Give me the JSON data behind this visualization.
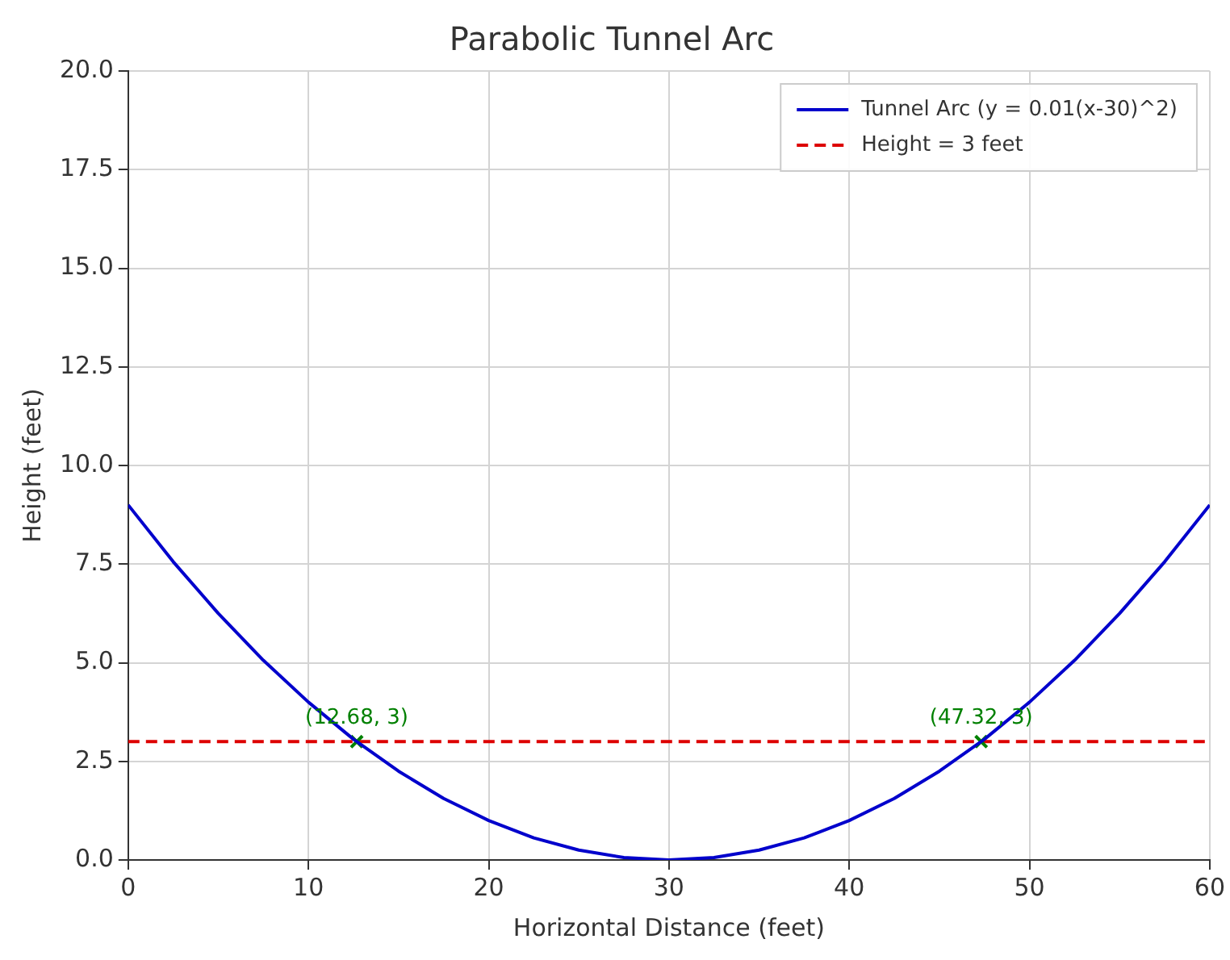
{
  "chart_data": {
    "type": "line",
    "title": "Parabolic Tunnel Arc",
    "xlabel": "Horizontal Distance (feet)",
    "ylabel": "Height (feet)",
    "series": [
      {
        "name": "Tunnel Arc (y = 0.01(x-30)^2)",
        "color": "#0000cc",
        "x": [
          0,
          2.5,
          5,
          7.5,
          10,
          12.5,
          15,
          17.5,
          20,
          22.5,
          25,
          27.5,
          30,
          32.5,
          35,
          37.5,
          40,
          42.5,
          45,
          47.5,
          50,
          52.5,
          55,
          57.5,
          60
        ],
        "values": [
          9,
          7.56,
          6.25,
          5.06,
          4,
          3.06,
          2.25,
          1.56,
          1,
          0.56,
          0.25,
          0.06,
          0,
          0.06,
          0.25,
          0.56,
          1,
          1.56,
          2.25,
          3.06,
          4,
          5.06,
          6.25,
          7.56,
          9
        ]
      },
      {
        "type": "scatter",
        "color": "#008000",
        "marker": "cross",
        "x": [
          12.68,
          47.32
        ],
        "values": [
          3,
          3
        ]
      }
    ],
    "ref_lines": [
      {
        "axis": "y",
        "value": 3,
        "label": "Height = 3 feet",
        "color": "#dd0000",
        "line_style": "dashed"
      }
    ],
    "annotations": [
      {
        "text": "(12.68, 3)",
        "x": 12.68,
        "y": 3
      },
      {
        "text": "(47.32, 3)",
        "x": 47.32,
        "y": 3
      }
    ],
    "xlim": [
      0,
      60
    ],
    "xticks": [
      0,
      10,
      20,
      30,
      40,
      50,
      60
    ],
    "ylim": [
      0,
      20
    ],
    "yticks": [
      {
        "value": 0,
        "label": "0.0"
      },
      {
        "value": 2.5,
        "label": "2.5"
      },
      {
        "value": 5,
        "label": "5.0"
      },
      {
        "value": 7.5,
        "label": "7.5"
      },
      {
        "value": 10,
        "label": "10.0"
      },
      {
        "value": 12.5,
        "label": "12.5"
      },
      {
        "value": 15,
        "label": "15.0"
      },
      {
        "value": 17.5,
        "label": "17.5"
      },
      {
        "value": 20,
        "label": "20.0"
      }
    ],
    "grid": true,
    "legend": "top right"
  }
}
